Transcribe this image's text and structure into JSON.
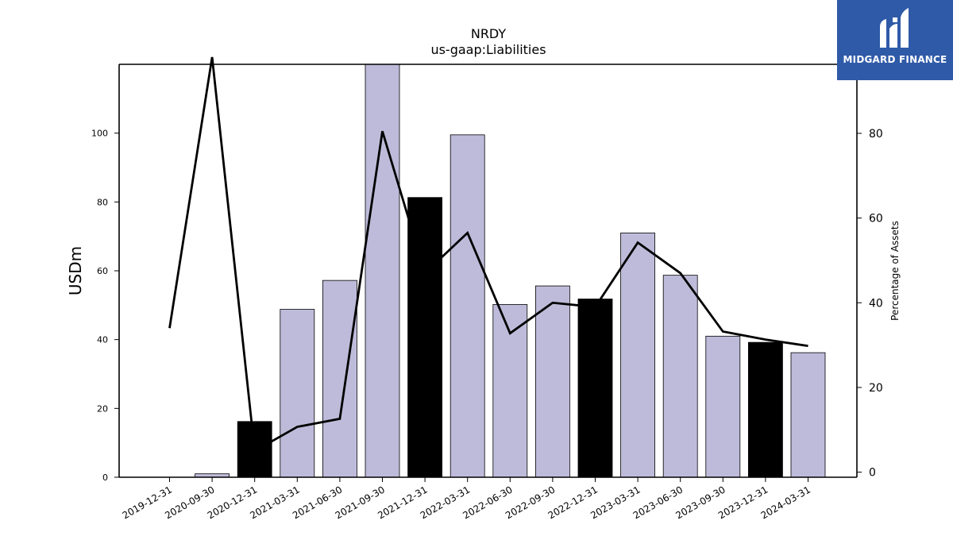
{
  "chart_data": {
    "type": "bar",
    "title": "NRDY",
    "subtitle": "us-gaap:Liabilities",
    "ylabel": "USDm",
    "y2label": "Percentage of Assets",
    "categories": [
      "2019-12-31",
      "2020-09-30",
      "2020-12-31",
      "2021-03-31",
      "2021-06-30",
      "2021-09-30",
      "2021-12-31",
      "2022-03-31",
      "2022-06-30",
      "2022-09-30",
      "2022-12-31",
      "2023-03-31",
      "2023-06-30",
      "2023-09-30",
      "2023-12-31",
      "2024-03-31"
    ],
    "series": [
      {
        "type": "bar",
        "values": [
          0,
          1.0,
          16.2,
          48.8,
          57.2,
          120.0,
          81.3,
          99.5,
          50.2,
          55.6,
          51.8,
          71.0,
          58.7,
          41.0,
          39.2,
          36.2
        ],
        "highlight": [
          false,
          false,
          true,
          false,
          false,
          false,
          true,
          false,
          false,
          false,
          true,
          false,
          false,
          false,
          true,
          false
        ],
        "colors": {
          "normal": "#bebbda",
          "highlight": "#000000"
        }
      },
      {
        "type": "line",
        "axis": "right",
        "values": [
          34.0,
          98.0,
          5.0,
          10.7,
          12.6,
          80.5,
          47.0,
          56.5,
          32.8,
          40.0,
          39.0,
          54.2,
          47.0,
          33.2,
          31.3,
          29.8
        ],
        "color": "#000000"
      }
    ],
    "ylim": [
      0,
      120
    ],
    "y2lim": [
      -1.2,
      96.3
    ],
    "yticks": [
      0,
      20,
      40,
      60,
      80,
      100
    ],
    "y2ticks": [
      0,
      20,
      40,
      60,
      80
    ],
    "grid": false
  },
  "logo": {
    "text": "MIDGARD FINANCE",
    "bg": "#2f5aa8"
  }
}
